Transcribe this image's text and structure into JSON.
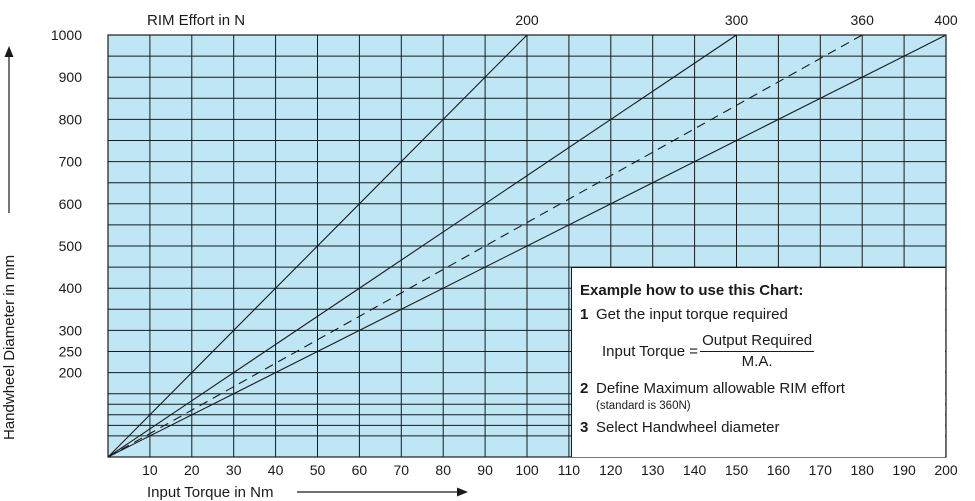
{
  "chart_data": {
    "type": "line",
    "top_axis_title": "RIM Effort in N",
    "ylabel": "Handwheel Diameter in mm",
    "xlabel": "Input Torque in Nm",
    "xlim": [
      0,
      200
    ],
    "ylim": [
      0,
      1000
    ],
    "x_ticks": [
      10,
      20,
      30,
      40,
      50,
      60,
      70,
      80,
      90,
      100,
      110,
      120,
      130,
      140,
      150,
      160,
      170,
      180,
      190,
      200
    ],
    "y_ticks": [
      200,
      250,
      300,
      400,
      500,
      600,
      700,
      800,
      900,
      1000
    ],
    "y_tick_labels": [
      "200",
      "250",
      "300",
      "400",
      "500",
      "600",
      "700",
      "800",
      "900",
      "1000"
    ],
    "x_gridlines": [
      10,
      20,
      30,
      40,
      50,
      60,
      70,
      80,
      90,
      100,
      110,
      120,
      130,
      140,
      150,
      160,
      170,
      180,
      190
    ],
    "y_gridlines": [
      50,
      75,
      100,
      125,
      150,
      200,
      250,
      300,
      350,
      400,
      450,
      500,
      550,
      600,
      650,
      700,
      750,
      800,
      850,
      900,
      950
    ],
    "grid": true,
    "series": [
      {
        "top_label": "200",
        "dashed": false,
        "x": [
          0,
          100
        ],
        "y": [
          0,
          1000
        ]
      },
      {
        "top_label": "300",
        "dashed": false,
        "x": [
          0,
          150
        ],
        "y": [
          0,
          1000
        ]
      },
      {
        "top_label": "360",
        "dashed": true,
        "x": [
          0,
          180
        ],
        "y": [
          0,
          1000
        ]
      },
      {
        "top_label": "400",
        "dashed": false,
        "x": [
          0,
          200
        ],
        "y": [
          0,
          1000
        ]
      }
    ],
    "colors": {
      "plot_bg": "#bfe6f5",
      "grid": "#1a1a1a",
      "lines": "#1a1a1a"
    }
  },
  "info_box": {
    "heading": "Example how to use this Chart:",
    "step1_num": "1",
    "step1_text": "Get the input torque required",
    "formula_lhs": "Input Torque =",
    "formula_numerator": "Output Required",
    "formula_denominator": "M.A.",
    "step2_num": "2",
    "step2_text": "Define Maximum allowable RIM effort",
    "step2_note": "(standard is 360N)",
    "step3_num": "3",
    "step3_text": "Select Handwheel diameter"
  }
}
